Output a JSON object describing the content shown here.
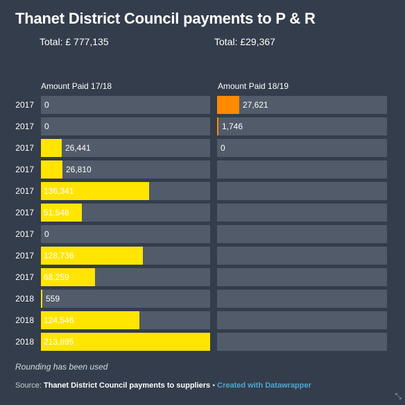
{
  "title": "Thanet District Council payments to P & R",
  "totals": {
    "left": "Total: £ 777,135",
    "right": "Total: £29,367"
  },
  "note": "Rounding has been used",
  "source": {
    "prefix": "Source: ",
    "name": "Thanet District Council payments to suppliers",
    "separator": " • ",
    "credit": "Created with Datawrapper"
  },
  "colors": {
    "bar_1718": "#ffe500",
    "bar_1819": "#ff8a00",
    "track": "#525b69",
    "background": "#343d4b"
  },
  "chart_data": {
    "type": "bar",
    "orientation": "horizontal",
    "categories": [
      "2017",
      "2017",
      "2017",
      "2017",
      "2017",
      "2017",
      "2017",
      "2017",
      "2017",
      "2018",
      "2018",
      "2018"
    ],
    "series": [
      {
        "name": "Amount Paid 17/18",
        "values": [
          0,
          0,
          26441,
          26810,
          136341,
          51548,
          0,
          128736,
          68259,
          559,
          124546,
          213895
        ],
        "labels": [
          "0",
          "0",
          "26,441",
          "26,810",
          "136,341",
          "51,548",
          "0",
          "128,736",
          "68,259",
          "559",
          "124,546",
          "213,895"
        ],
        "xlim": [
          0,
          213895
        ]
      },
      {
        "name": "Amount Paid 18/19",
        "values": [
          27621,
          1746,
          0,
          null,
          null,
          null,
          null,
          null,
          null,
          null,
          null,
          null
        ],
        "labels": [
          "27,621",
          "1,746",
          "0",
          "",
          "",
          "",
          "",
          "",
          "",
          "",
          "",
          ""
        ],
        "xlim": [
          0,
          213895
        ]
      }
    ]
  }
}
